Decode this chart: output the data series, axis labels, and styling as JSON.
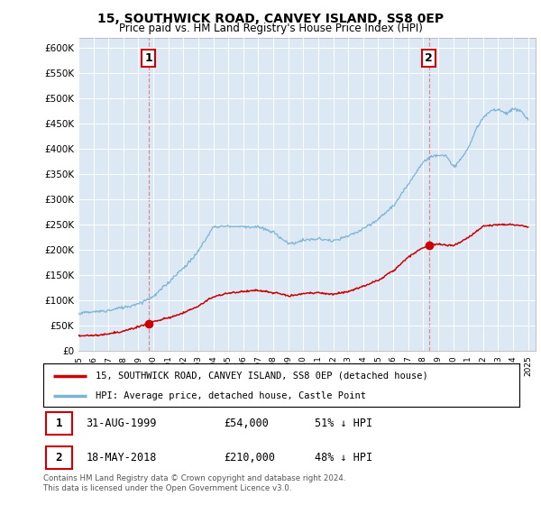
{
  "title": "15, SOUTHWICK ROAD, CANVEY ISLAND, SS8 0EP",
  "subtitle": "Price paid vs. HM Land Registry's House Price Index (HPI)",
  "legend_line1": "15, SOUTHWICK ROAD, CANVEY ISLAND, SS8 0EP (detached house)",
  "legend_line2": "HPI: Average price, detached house, Castle Point",
  "row1_date": "31-AUG-1999",
  "row1_price": "£54,000",
  "row1_hpi": "51% ↓ HPI",
  "row2_date": "18-MAY-2018",
  "row2_price": "£210,000",
  "row2_hpi": "48% ↓ HPI",
  "footer": "Contains HM Land Registry data © Crown copyright and database right 2024.\nThis data is licensed under the Open Government Licence v3.0.",
  "price_color": "#cc0000",
  "hpi_color": "#7fb3d3",
  "vline_color": "#e08080",
  "marker1_date": 1999.667,
  "marker1_value": 54000,
  "marker2_date": 2018.375,
  "marker2_value": 210000,
  "ylim_min": 0,
  "ylim_max": 620000,
  "xmin": 1995,
  "xmax": 2025.5,
  "plot_bg_color": "#dce9f5",
  "fig_bg_color": "#ffffff",
  "grid_color": "#ffffff"
}
